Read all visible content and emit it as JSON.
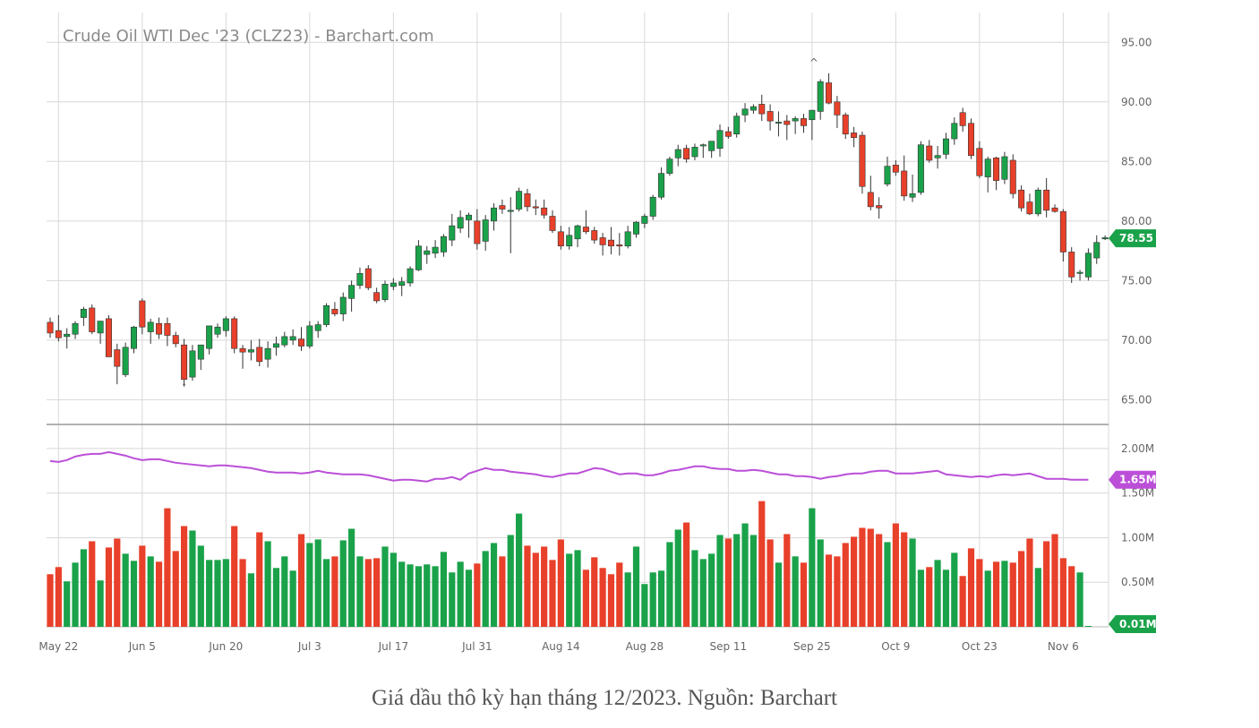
{
  "caption": "Giá dầu thô kỳ hạn tháng 12/2023. Nguồn: Barchart",
  "chart_data": {
    "type": "candlestick",
    "title": "Crude Oil WTI Dec '23 (CLZ23) - Barchart.com",
    "colors": {
      "up": "#1aa24a",
      "down": "#e8402a",
      "avg": "#bb4fd8",
      "badge_price": "#1aa24a",
      "badge_avg": "#bb4fd8",
      "grid": "#d8d8d8"
    },
    "x_labels": [
      "May 22",
      "Jun 5",
      "Jun 20",
      "Jul 3",
      "Jul 17",
      "Jul 31",
      "Aug 14",
      "Aug 28",
      "Sep 11",
      "Sep 25",
      "Oct 9",
      "Oct 23",
      "Nov 6"
    ],
    "x_label_index": [
      1,
      11,
      21,
      31,
      41,
      51,
      61,
      71,
      81,
      91,
      101,
      111,
      121
    ],
    "price_panel": {
      "ylim": [
        63.0,
        97.5
      ],
      "yticks": [
        "95.00",
        "90.00",
        "85.00",
        "80.00",
        "75.00",
        "70.00",
        "65.00"
      ],
      "ytick_values": [
        95,
        90,
        85,
        80,
        75,
        70,
        65
      ],
      "last_price_label": "78.55",
      "last_price": 78.55,
      "candles": [
        [
          71.5,
          71.9,
          70.2,
          70.6
        ],
        [
          70.8,
          72.1,
          69.9,
          70.2
        ],
        [
          70.3,
          71.0,
          69.3,
          70.5
        ],
        [
          70.5,
          71.6,
          70.1,
          71.4
        ],
        [
          71.9,
          72.8,
          71.2,
          72.6
        ],
        [
          72.7,
          73.0,
          70.5,
          70.7
        ],
        [
          70.6,
          71.5,
          69.7,
          71.6
        ],
        [
          71.8,
          72.1,
          68.9,
          68.6
        ],
        [
          69.2,
          69.7,
          66.3,
          67.8
        ],
        [
          67.1,
          69.8,
          66.9,
          69.4
        ],
        [
          69.3,
          71.2,
          68.9,
          71.1
        ],
        [
          73.3,
          73.5,
          70.5,
          71.1
        ],
        [
          70.7,
          71.8,
          69.7,
          71.5
        ],
        [
          71.4,
          71.9,
          70.1,
          70.5
        ],
        [
          71.4,
          71.9,
          69.5,
          70.4
        ],
        [
          70.4,
          70.7,
          69.4,
          69.7
        ],
        [
          69.6,
          70.1,
          66.1,
          66.7
        ],
        [
          66.9,
          69.6,
          66.6,
          69.1
        ],
        [
          68.4,
          69.3,
          67.5,
          69.6
        ],
        [
          69.3,
          71.2,
          68.8,
          71.2
        ],
        [
          70.5,
          71.4,
          70.2,
          71.1
        ],
        [
          70.8,
          72.0,
          70.3,
          71.8
        ],
        [
          71.8,
          72.0,
          68.9,
          69.3
        ],
        [
          69.3,
          69.6,
          67.6,
          69.0
        ],
        [
          69.0,
          70.0,
          68.3,
          69.2
        ],
        [
          69.4,
          70.1,
          67.8,
          68.2
        ],
        [
          68.4,
          69.9,
          67.7,
          69.3
        ],
        [
          69.4,
          70.3,
          68.7,
          69.7
        ],
        [
          69.6,
          70.7,
          69.4,
          70.3
        ],
        [
          70.0,
          70.9,
          69.6,
          70.3
        ],
        [
          70.1,
          71.1,
          69.1,
          69.5
        ],
        [
          69.5,
          71.6,
          69.3,
          71.2
        ],
        [
          70.8,
          71.6,
          70.2,
          71.3
        ],
        [
          71.3,
          73.1,
          71.1,
          72.9
        ],
        [
          72.6,
          73.2,
          72.0,
          72.2
        ],
        [
          72.2,
          74.0,
          71.6,
          73.6
        ],
        [
          73.5,
          75.0,
          72.4,
          74.6
        ],
        [
          74.6,
          76.1,
          74.3,
          75.6
        ],
        [
          76.0,
          76.3,
          74.2,
          74.4
        ],
        [
          74.0,
          74.4,
          73.1,
          73.3
        ],
        [
          73.4,
          75.0,
          73.2,
          74.7
        ],
        [
          74.5,
          75.2,
          74.2,
          74.8
        ],
        [
          74.6,
          75.3,
          73.7,
          74.9
        ],
        [
          74.8,
          76.2,
          74.5,
          76.0
        ],
        [
          75.9,
          78.4,
          75.8,
          77.9
        ],
        [
          77.2,
          77.9,
          76.4,
          77.5
        ],
        [
          77.3,
          78.4,
          76.9,
          77.8
        ],
        [
          77.4,
          78.9,
          77.0,
          78.7
        ],
        [
          78.4,
          80.6,
          77.9,
          79.6
        ],
        [
          79.4,
          80.9,
          79.0,
          80.3
        ],
        [
          80.1,
          80.7,
          78.6,
          80.5
        ],
        [
          80.0,
          81.0,
          77.6,
          78.1
        ],
        [
          78.3,
          80.5,
          77.5,
          80.1
        ],
        [
          80.0,
          81.5,
          79.2,
          81.1
        ],
        [
          81.3,
          81.8,
          80.6,
          81.0
        ],
        [
          80.8,
          82.0,
          77.3,
          80.9
        ],
        [
          81.0,
          82.8,
          80.8,
          82.5
        ],
        [
          82.3,
          82.7,
          80.8,
          81.2
        ],
        [
          81.2,
          81.8,
          80.5,
          81.1
        ],
        [
          81.1,
          81.8,
          80.2,
          80.5
        ],
        [
          80.4,
          80.9,
          79.0,
          79.2
        ],
        [
          79.1,
          79.6,
          77.6,
          77.9
        ],
        [
          77.9,
          79.5,
          77.6,
          78.8
        ],
        [
          78.5,
          79.7,
          77.8,
          79.6
        ],
        [
          79.5,
          80.9,
          78.9,
          79.1
        ],
        [
          79.2,
          79.5,
          78.1,
          78.4
        ],
        [
          78.6,
          79.0,
          77.1,
          78.0
        ],
        [
          78.4,
          79.5,
          77.2,
          77.9
        ],
        [
          78.0,
          79.0,
          77.1,
          77.9
        ],
        [
          77.9,
          79.6,
          77.7,
          79.1
        ],
        [
          78.9,
          80.0,
          78.6,
          79.9
        ],
        [
          79.8,
          80.6,
          79.4,
          80.4
        ],
        [
          80.4,
          82.2,
          80.1,
          82.0
        ],
        [
          82.0,
          84.5,
          81.8,
          84.0
        ],
        [
          84.0,
          85.4,
          83.8,
          85.2
        ],
        [
          85.3,
          86.4,
          84.6,
          86.0
        ],
        [
          86.1,
          86.4,
          84.9,
          85.2
        ],
        [
          85.4,
          86.5,
          85.1,
          86.2
        ],
        [
          86.3,
          86.5,
          85.3,
          86.4
        ],
        [
          85.9,
          86.6,
          85.3,
          86.7
        ],
        [
          86.1,
          88.1,
          85.4,
          87.6
        ],
        [
          87.5,
          87.9,
          86.9,
          87.1
        ],
        [
          87.3,
          89.1,
          87.0,
          88.8
        ],
        [
          88.9,
          89.9,
          88.3,
          89.4
        ],
        [
          89.3,
          89.8,
          89.0,
          89.6
        ],
        [
          89.8,
          90.6,
          88.4,
          89.0
        ],
        [
          89.2,
          89.8,
          87.6,
          88.4
        ],
        [
          88.3,
          89.2,
          87.1,
          88.3
        ],
        [
          88.4,
          88.9,
          86.8,
          88.1
        ],
        [
          88.4,
          88.8,
          87.3,
          88.6
        ],
        [
          88.6,
          89.0,
          87.4,
          88.0
        ],
        [
          88.5,
          89.0,
          86.8,
          89.3
        ],
        [
          89.2,
          91.9,
          88.5,
          91.7
        ],
        [
          91.6,
          92.4,
          89.8,
          89.9
        ],
        [
          90.0,
          90.5,
          87.8,
          88.9
        ],
        [
          88.9,
          89.1,
          86.9,
          87.3
        ],
        [
          87.4,
          87.9,
          86.2,
          87.0
        ],
        [
          87.2,
          87.5,
          82.3,
          82.9
        ],
        [
          82.4,
          83.8,
          80.9,
          81.2
        ],
        [
          81.3,
          82.0,
          80.2,
          81.1
        ],
        [
          83.1,
          85.4,
          82.9,
          84.6
        ],
        [
          84.7,
          85.1,
          83.8,
          84.1
        ],
        [
          84.2,
          85.5,
          81.7,
          82.1
        ],
        [
          82.0,
          83.9,
          81.6,
          82.3
        ],
        [
          82.4,
          86.7,
          82.2,
          86.4
        ],
        [
          86.3,
          86.8,
          84.9,
          85.1
        ],
        [
          85.3,
          86.3,
          84.4,
          85.5
        ],
        [
          85.6,
          87.4,
          85.2,
          86.9
        ],
        [
          86.9,
          88.7,
          86.4,
          88.2
        ],
        [
          89.1,
          89.5,
          87.5,
          88.0
        ],
        [
          88.2,
          88.6,
          85.2,
          85.5
        ],
        [
          86.1,
          86.7,
          83.6,
          83.8
        ],
        [
          83.7,
          85.4,
          82.4,
          85.2
        ],
        [
          85.3,
          85.4,
          82.6,
          83.4
        ],
        [
          83.5,
          85.8,
          83.1,
          85.4
        ],
        [
          85.1,
          85.6,
          81.9,
          82.3
        ],
        [
          82.6,
          83.0,
          80.8,
          81.1
        ],
        [
          81.6,
          82.3,
          80.5,
          80.6
        ],
        [
          80.6,
          82.8,
          80.4,
          82.6
        ],
        [
          82.6,
          83.6,
          80.3,
          80.9
        ],
        [
          81.1,
          81.4,
          80.7,
          80.8
        ],
        [
          80.8,
          81.0,
          76.6,
          77.4
        ],
        [
          77.4,
          77.8,
          74.8,
          75.3
        ],
        [
          75.6,
          75.9,
          75.0,
          75.7
        ],
        [
          75.3,
          77.7,
          75.0,
          77.3
        ],
        [
          76.9,
          78.8,
          76.4,
          78.2
        ],
        [
          78.5,
          78.8,
          78.4,
          78.6
        ]
      ]
    },
    "volume_panel": {
      "ylim": [
        0,
        2.25
      ],
      "yticks": [
        "2.00M",
        "1.50M",
        "1.00M",
        "0.50M"
      ],
      "ytick_values": [
        2.0,
        1.5,
        1.0,
        0.5
      ],
      "avg_label": "1.65M",
      "last_volume_label": "0.01M",
      "avg": [
        1.86,
        1.85,
        1.87,
        1.91,
        1.93,
        1.94,
        1.94,
        1.96,
        1.94,
        1.92,
        1.89,
        1.87,
        1.88,
        1.88,
        1.86,
        1.84,
        1.83,
        1.82,
        1.81,
        1.8,
        1.81,
        1.81,
        1.8,
        1.79,
        1.78,
        1.76,
        1.74,
        1.73,
        1.73,
        1.73,
        1.72,
        1.73,
        1.75,
        1.73,
        1.72,
        1.71,
        1.71,
        1.71,
        1.7,
        1.68,
        1.66,
        1.64,
        1.65,
        1.65,
        1.64,
        1.63,
        1.66,
        1.66,
        1.68,
        1.65,
        1.72,
        1.75,
        1.78,
        1.76,
        1.76,
        1.74,
        1.73,
        1.72,
        1.71,
        1.69,
        1.68,
        1.7,
        1.72,
        1.72,
        1.75,
        1.78,
        1.77,
        1.74,
        1.71,
        1.72,
        1.72,
        1.7,
        1.7,
        1.72,
        1.75,
        1.76,
        1.78,
        1.8,
        1.8,
        1.78,
        1.77,
        1.77,
        1.75,
        1.75,
        1.76,
        1.75,
        1.73,
        1.71,
        1.71,
        1.69,
        1.69,
        1.68,
        1.66,
        1.68,
        1.69,
        1.71,
        1.72,
        1.72,
        1.74,
        1.75,
        1.75,
        1.72,
        1.72,
        1.72,
        1.73,
        1.74,
        1.75,
        1.71,
        1.7,
        1.69,
        1.68,
        1.69,
        1.68,
        1.7,
        1.71,
        1.7,
        1.71,
        1.72,
        1.69,
        1.66,
        1.66,
        1.66,
        1.65,
        1.65,
        1.65
      ],
      "volumes": [
        0.59,
        0.67,
        0.51,
        0.72,
        0.87,
        0.96,
        0.52,
        0.89,
        0.99,
        0.82,
        0.74,
        0.91,
        0.79,
        0.73,
        1.33,
        0.85,
        1.13,
        1.08,
        0.91,
        0.75,
        0.75,
        0.76,
        1.13,
        0.76,
        0.6,
        1.06,
        0.96,
        0.66,
        0.79,
        0.63,
        1.04,
        0.94,
        0.98,
        0.76,
        0.79,
        0.97,
        1.1,
        0.79,
        0.76,
        0.77,
        0.9,
        0.83,
        0.73,
        0.7,
        0.68,
        0.7,
        0.68,
        0.84,
        0.61,
        0.73,
        0.64,
        0.71,
        0.85,
        0.94,
        0.79,
        1.03,
        1.27,
        0.91,
        0.83,
        0.9,
        0.75,
        0.98,
        0.82,
        0.86,
        0.64,
        0.78,
        0.66,
        0.59,
        0.72,
        0.61,
        0.9,
        0.48,
        0.61,
        0.63,
        0.95,
        1.09,
        1.17,
        0.86,
        0.76,
        0.82,
        1.03,
        0.99,
        1.04,
        1.16,
        1.03,
        1.41,
        0.98,
        0.72,
        1.04,
        0.79,
        0.72,
        1.33,
        0.98,
        0.81,
        0.79,
        0.94,
        1.01,
        1.11,
        1.1,
        1.04,
        0.95,
        1.16,
        1.06,
        0.99,
        0.64,
        0.67,
        0.75,
        0.64,
        0.83,
        0.57,
        0.88,
        0.76,
        0.63,
        0.73,
        0.74,
        0.72,
        0.85,
        0.99,
        0.66,
        0.96,
        1.04,
        0.77,
        0.68,
        0.61,
        0.01
      ],
      "volume_colors": "up/down same as candles"
    }
  }
}
